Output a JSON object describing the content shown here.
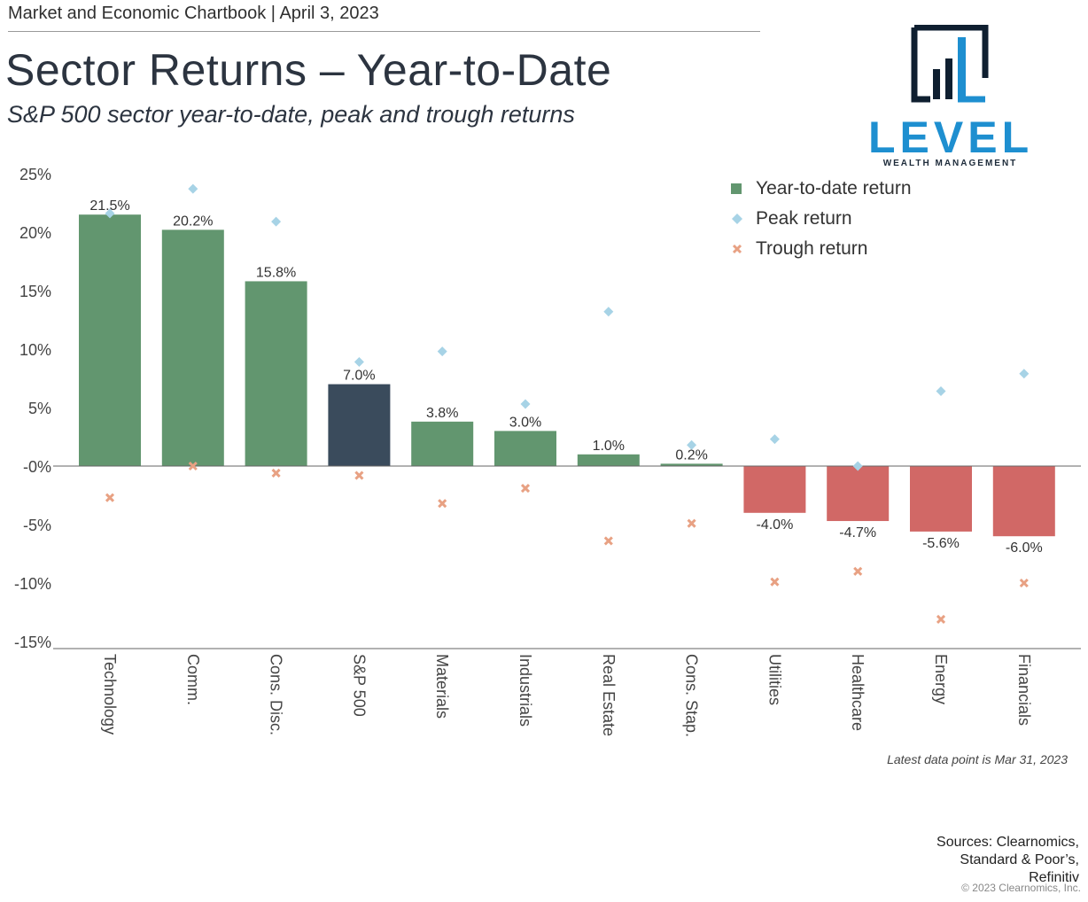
{
  "header": {
    "chartbook_line": "Market and Economic Chartbook | April 3, 2023",
    "title": "Sector Returns – Year-to-Date",
    "subtitle": "S&P 500 sector year-to-date, peak and trough returns"
  },
  "logo": {
    "name": "LEVEL",
    "tagline": "WEALTH MANAGEMENT",
    "color_primary": "#1e8fd0",
    "color_dark": "#0f1f30"
  },
  "colors": {
    "positive": "#62966f",
    "sp500": "#3a4b5c",
    "negative": "#d16866",
    "peak": "#a7d3e6",
    "trough": "#e8a183"
  },
  "chart_data": {
    "type": "bar",
    "categories": [
      "Technology",
      "Comm.",
      "Cons. Disc.",
      "S&P 500",
      "Materials",
      "Industrials",
      "Real Estate",
      "Cons. Stap.",
      "Utilities",
      "Healthcare",
      "Energy",
      "Financials"
    ],
    "series": [
      {
        "name": "Year-to-date return",
        "values": [
          21.5,
          20.2,
          15.8,
          7.0,
          3.8,
          3.0,
          1.0,
          0.2,
          -4.0,
          -4.7,
          -5.6,
          -6.0
        ]
      },
      {
        "name": "Peak return",
        "values": [
          21.6,
          23.7,
          20.9,
          8.9,
          9.8,
          5.3,
          13.2,
          1.8,
          2.3,
          0.0,
          6.4,
          7.9
        ]
      },
      {
        "name": "Trough return",
        "values": [
          -2.7,
          0.0,
          -0.6,
          -0.8,
          -3.2,
          -1.9,
          -6.4,
          -4.9,
          -9.9,
          -9.0,
          -13.1,
          -10.0
        ]
      }
    ],
    "data_labels": [
      "21.5%",
      "20.2%",
      "15.8%",
      "7.0%",
      "3.8%",
      "3.0%",
      "1.0%",
      "0.2%",
      "-4.0%",
      "-4.7%",
      "-5.6%",
      "-6.0%"
    ],
    "y_ticks": [
      25,
      20,
      15,
      10,
      5,
      0,
      -5,
      -10,
      -15
    ],
    "y_tick_labels": [
      "25%",
      "20%",
      "15%",
      "10%",
      "5%",
      "-0%",
      "-5%",
      "-10%",
      "-15%"
    ],
    "ylim": [
      -15,
      25
    ],
    "legend_position": "top-right",
    "grid": false,
    "highlight_category": "S&P 500"
  },
  "footer": {
    "note": "Latest data point is Mar 31, 2023",
    "sources_lines": [
      "Sources: Clearnomics,",
      "Standard & Poor’s,",
      "Refinitiv"
    ],
    "copyright": "© 2023 Clearnomics, Inc."
  }
}
